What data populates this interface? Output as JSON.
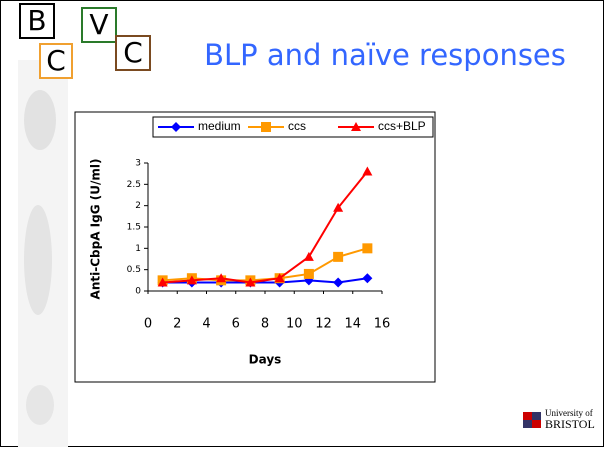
{
  "slide": {
    "title": "BLP and naïve responses",
    "logo_letters": [
      "B",
      "C",
      "V",
      "C"
    ],
    "university_line1": "University of",
    "university_line2": "BRISTOL"
  },
  "chart_data": {
    "type": "line",
    "x_label": "Days",
    "y_label": "Anti-CbpA IgG (U/ml)",
    "x": [
      1,
      3,
      5,
      7,
      9,
      11,
      13,
      15
    ],
    "series": [
      {
        "name": "medium",
        "color": "#0000ff",
        "marker": "diamond",
        "values": [
          0.2,
          0.2,
          0.2,
          0.2,
          0.2,
          0.25,
          0.2,
          0.3
        ]
      },
      {
        "name": "ccs",
        "color": "#ff9900",
        "marker": "square",
        "values": [
          0.25,
          0.3,
          0.25,
          0.25,
          0.3,
          0.4,
          0.8,
          1.0
        ]
      },
      {
        "name": "ccs+BLP",
        "color": "#ff0000",
        "marker": "triangle",
        "values": [
          0.2,
          0.25,
          0.3,
          0.2,
          0.3,
          0.8,
          1.95,
          2.8
        ]
      }
    ],
    "xlim": [
      0,
      16
    ],
    "xticks": [
      0,
      2,
      4,
      6,
      8,
      10,
      12,
      14,
      16
    ],
    "ylim": [
      0,
      3
    ],
    "yticks": [
      0,
      0.5,
      1,
      1.5,
      2,
      2.5,
      3
    ],
    "legend": "top"
  }
}
